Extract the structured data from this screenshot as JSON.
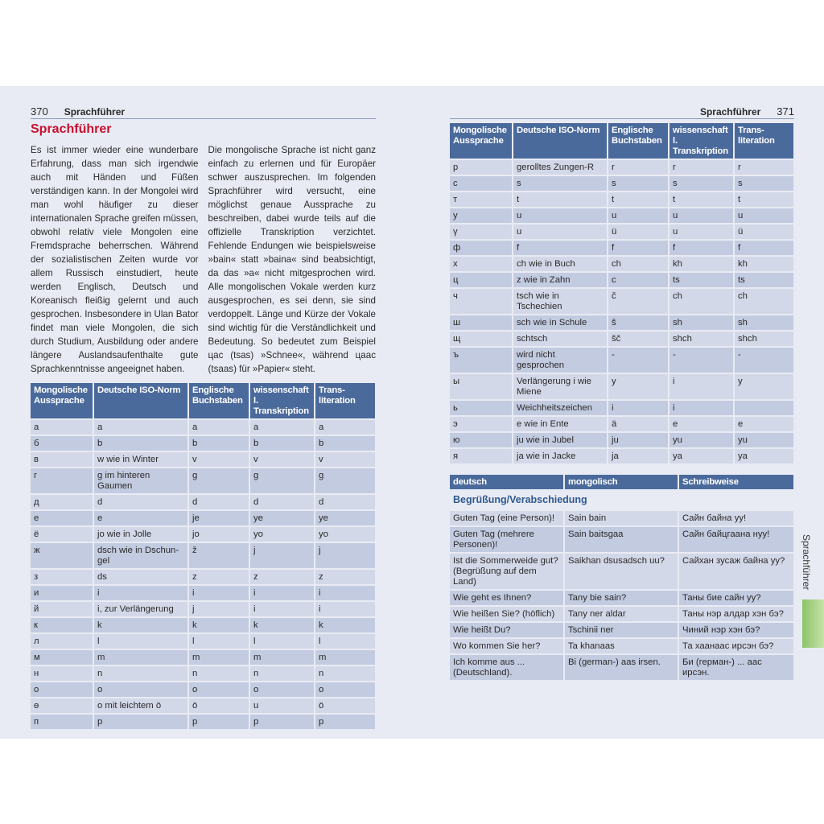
{
  "left_page": {
    "page_number": "370",
    "running_head": "Sprachführer",
    "title": "Sprachführer",
    "column1": "Es ist immer wieder eine wunderbare Erfahrung, dass man sich irgendwie auch mit Händen und Füßen verständigen kann. In der Mongolei wird man wohl häufiger zu dieser internationalen Sprache greifen müssen, obwohl relativ viele Mongolen eine Fremdsprache beherrschen. Während der sozialistischen Zeiten wurde vor allem Russisch einstudiert, heute werden Englisch, Deutsch und Koreanisch fleißig gelernt und auch gesprochen. Insbesondere in Ulan Bator findet man viele Mongolen, die sich durch Studium, Ausbildung oder andere längere Auslandsaufenthalte gute Sprachkenntnisse angeeignet haben.",
    "column2": "Die mongolische Sprache ist nicht ganz einfach zu erlernen und für Europäer schwer auszusprechen. Im folgenden Sprachführer wird versucht, eine möglichst genaue Aussprache zu beschreiben, dabei wurde teils auf die offizielle Transkription verzichtet. Fehlende Endungen wie beispielsweise »bain« statt »baina« sind beabsichtigt, da das »a« nicht mitgesprochen wird. Alle mongolischen Vokale werden kurz ausgesprochen, es sei denn, sie sind verdoppelt. Länge und Kürze der Vokale sind wichtig für die Verständlichkeit und Bedeutung. So bedeutet zum Beispiel цас (tsas) »Schnee«, während цаас (tsaas) für »Papier« steht."
  },
  "right_page": {
    "page_number": "371",
    "running_head": "Sprachführer",
    "side_tab": "Sprachführer"
  },
  "alphabet_headers": [
    "Mongolische Aussprache",
    "Deutsche ISO-Norm",
    "Englische Buchstaben",
    "wissenschaftl. Transkription",
    "Trans-literation"
  ],
  "alphabet_left": [
    [
      "а",
      "a",
      "a",
      "a",
      "a"
    ],
    [
      "б",
      "b",
      "b",
      "b",
      "b"
    ],
    [
      "в",
      "w wie in Winter",
      "v",
      "v",
      "v"
    ],
    [
      "г",
      "g im hinteren Gaumen",
      "g",
      "g",
      "g"
    ],
    [
      "д",
      "d",
      "d",
      "d",
      "d"
    ],
    [
      "е",
      "e",
      "je",
      "ye",
      "ye"
    ],
    [
      "ё",
      "jo wie in Jolle",
      "jo",
      "yo",
      "yo"
    ],
    [
      "ж",
      "dsch wie in Dschun-gel",
      "ž",
      "j",
      "j"
    ],
    [
      "з",
      "ds",
      "z",
      "z",
      "z"
    ],
    [
      "и",
      "i",
      "i",
      "i",
      "i"
    ],
    [
      "й",
      "i, zur Verlängerung",
      "j",
      "i",
      "i"
    ],
    [
      "к",
      "k",
      "k",
      "k",
      "k"
    ],
    [
      "л",
      "l",
      "l",
      "l",
      "l"
    ],
    [
      "м",
      "m",
      "m",
      "m",
      "m"
    ],
    [
      "н",
      "n",
      "n",
      "n",
      "n"
    ],
    [
      "о",
      "o",
      "o",
      "o",
      "o"
    ],
    [
      "ө",
      "o mit leichtem ö",
      "ö",
      "u",
      "ö"
    ],
    [
      "п",
      "p",
      "p",
      "p",
      "p"
    ]
  ],
  "alphabet_right": [
    [
      "р",
      "gerolltes Zungen-R",
      "r",
      "r",
      "r"
    ],
    [
      "с",
      "s",
      "s",
      "s",
      "s"
    ],
    [
      "т",
      "t",
      "t",
      "t",
      "t"
    ],
    [
      "у",
      "u",
      "u",
      "u",
      "u"
    ],
    [
      "ү",
      "u",
      "ü",
      "u",
      "ü"
    ],
    [
      "ф",
      "f",
      "f",
      "f",
      "f"
    ],
    [
      "х",
      "ch wie in Buch",
      "ch",
      "kh",
      "kh"
    ],
    [
      "ц",
      "z wie in Zahn",
      "c",
      "ts",
      "ts"
    ],
    [
      "ч",
      "tsch wie in Tschechien",
      "č",
      "ch",
      "ch"
    ],
    [
      "ш",
      "sch wie in Schule",
      "š",
      "sh",
      "sh"
    ],
    [
      "щ",
      "schtsch",
      "šč",
      "shch",
      "shch"
    ],
    [
      "ъ",
      "wird nicht gesprochen",
      "-",
      "-",
      "-"
    ],
    [
      "ы",
      "Verlängerung i wie Miene",
      "y",
      "i",
      "y"
    ],
    [
      "ь",
      "Weichheitszeichen",
      "i",
      "i",
      ""
    ],
    [
      "э",
      "e wie in Ente",
      "ä",
      "e",
      "e"
    ],
    [
      "ю",
      "ju wie in Jubel",
      "ju",
      "yu",
      "yu"
    ],
    [
      "я",
      "ja wie in Jacke",
      "ja",
      "ya",
      "ya"
    ]
  ],
  "phrases": {
    "headers": [
      "deutsch",
      "mongolisch",
      "Schreibweise"
    ],
    "section": "Begrüßung/Verabschiedung",
    "rows": [
      [
        "Guten Tag (eine Person)!",
        "Sain bain",
        "Сайн байна уу!"
      ],
      [
        "Guten Tag (mehrere Personen)!",
        "Sain baitsgaa",
        "Сайн байцгаана нуу!"
      ],
      [
        "Ist die Sommerweide gut? (Begrüßung auf dem Land)",
        "Saikhan dsusadsch uu?",
        "Сайхан зусаж байна уу?"
      ],
      [
        "Wie geht es Ihnen?",
        "Tany bie sain?",
        "Таны бие сайн уу?"
      ],
      [
        "Wie heißen Sie? (höflich)",
        "Tany ner aldar",
        "Таны нэр алдар хэн бэ?"
      ],
      [
        "Wie heißt Du?",
        "Tschinii ner",
        "Чиний нэр хэн бэ?"
      ],
      [
        "Wo kommen Sie her?",
        "Ta khanaas",
        "Та хаанаас ирсэн бэ?"
      ],
      [
        "Ich komme aus ... (Deutschland).",
        "Bi (german-) aas irsen.",
        "Би (герман-) ... аас ирсэн."
      ]
    ]
  },
  "colors": {
    "header_blue": "#4b6a9c",
    "title_red": "#c8102e",
    "row_light": "#d3d8e8",
    "row_dark": "#c3cbe0",
    "tab_green": "#8cc46a"
  }
}
